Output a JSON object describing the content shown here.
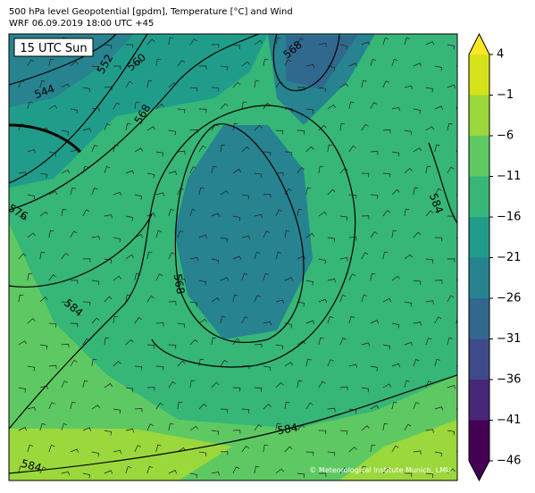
{
  "header": {
    "title": "500 hPa level Geopotential [gpdm], Temperature [°C] and Wind",
    "subtitle": "WRF 06.09.2019 18:00 UTC +45"
  },
  "map": {
    "time_label": "15 UTC Sun",
    "contour_labels": [
      "544",
      "552",
      "560",
      "568",
      "576",
      "584",
      "568",
      "568",
      "584",
      "584",
      "584"
    ],
    "credit": "© Meteorological Institute Munich, LMU"
  },
  "colorbar": {
    "range": [
      -46,
      4
    ],
    "ticks": [
      {
        "value": 4,
        "label": "4"
      },
      {
        "value": -1,
        "label": "−1"
      },
      {
        "value": -6,
        "label": "−6"
      },
      {
        "value": -11,
        "label": "−11"
      },
      {
        "value": -16,
        "label": "−16"
      },
      {
        "value": -21,
        "label": "−21"
      },
      {
        "value": -26,
        "label": "−26"
      },
      {
        "value": -31,
        "label": "−31"
      },
      {
        "value": -36,
        "label": "−36"
      },
      {
        "value": -41,
        "label": "−41"
      },
      {
        "value": -46,
        "label": "−46"
      }
    ],
    "colors": [
      "#440154",
      "#472777",
      "#3e4a89",
      "#31688e",
      "#26838f",
      "#1f9d8a",
      "#36b677",
      "#5ec962",
      "#9bd83c",
      "#d5e21a"
    ],
    "over_color": "#fde725",
    "under_color": "#440154"
  }
}
